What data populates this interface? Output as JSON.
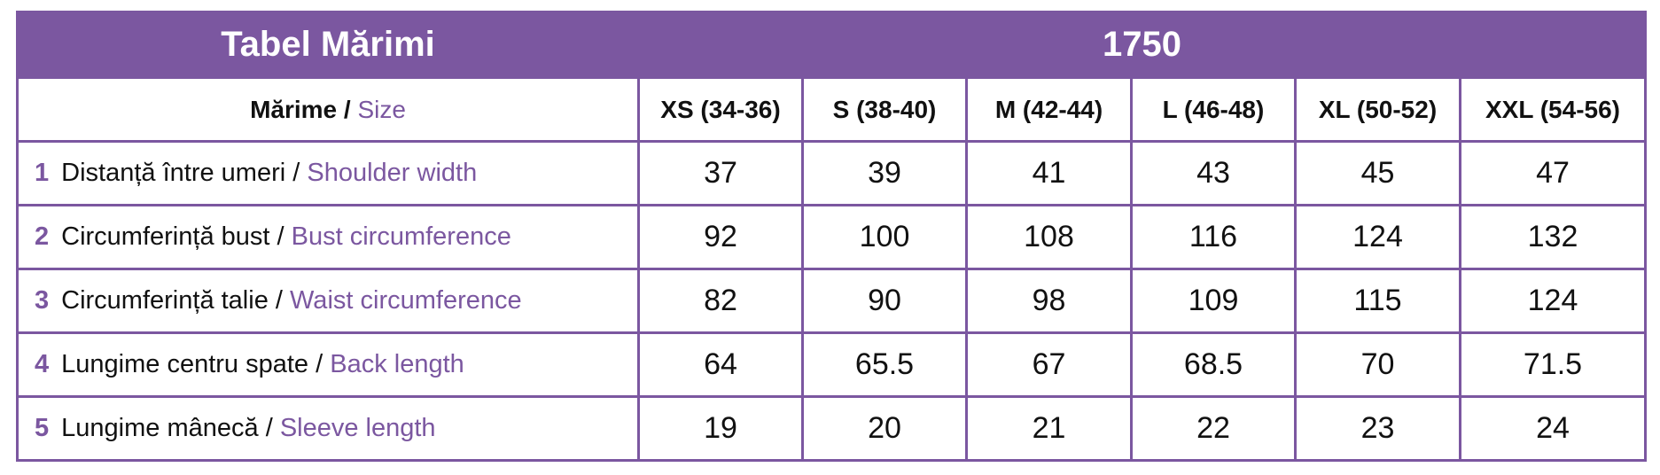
{
  "header": {
    "title": "Tabel Mărimi",
    "code": "1750"
  },
  "size_header": {
    "ro": "Mărime",
    "separator": "/",
    "en": "Size"
  },
  "sizes": [
    "XS (34-36)",
    "S (38-40)",
    "M (42-44)",
    "L (46-48)",
    "XL (50-52)",
    "XXL (54-56)"
  ],
  "rows": [
    {
      "number": 1,
      "ro": "Distanță între umeri",
      "en": "Shoulder width",
      "values": [
        37,
        39,
        41,
        43,
        45,
        47
      ]
    },
    {
      "number": 2,
      "ro": "Circumferință bust",
      "en": "Bust circumference",
      "values": [
        92,
        100,
        108,
        116,
        124,
        132
      ]
    },
    {
      "number": 3,
      "ro": "Circumferință talie",
      "en": "Waist circumference",
      "values": [
        82,
        90,
        98,
        109,
        115,
        124
      ]
    },
    {
      "number": 4,
      "ro": "Lungime centru spate",
      "en": "Back length",
      "values": [
        64,
        65.5,
        67,
        68.5,
        70,
        71.5
      ]
    },
    {
      "number": 5,
      "ro": "Lungime mânecă",
      "en": "Sleeve length",
      "values": [
        19,
        20,
        21,
        22,
        23,
        24
      ]
    }
  ]
}
